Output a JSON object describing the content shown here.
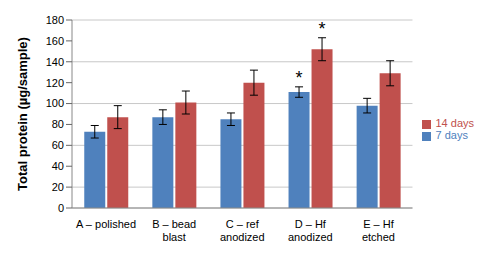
{
  "chart_data": {
    "type": "bar",
    "y_label": "Total protein (µg/sample)",
    "categories": [
      "A – polished",
      "B – bead blast",
      "C – ref anodized",
      "D – Hf anodized",
      "E – Hf etched"
    ],
    "series": [
      {
        "name": "7 days",
        "color": "#4f81bd",
        "values": [
          73,
          87,
          85,
          111,
          98
        ],
        "errors": [
          6,
          7,
          6,
          5,
          7
        ]
      },
      {
        "name": "14 days",
        "color": "#c0504d",
        "values": [
          87,
          101,
          120,
          152,
          129
        ],
        "errors": [
          11,
          11,
          12,
          11,
          12
        ]
      }
    ],
    "ylim": [
      0,
      180
    ],
    "yticks": [
      0,
      20,
      40,
      60,
      80,
      100,
      120,
      140,
      160,
      180
    ],
    "grid": true,
    "legend": "right",
    "annotations": [
      {
        "text": "*",
        "category": "D – Hf anodized",
        "series": "7 days"
      },
      {
        "text": "*",
        "category": "D – Hf anodized",
        "series": "14 days"
      }
    ]
  }
}
